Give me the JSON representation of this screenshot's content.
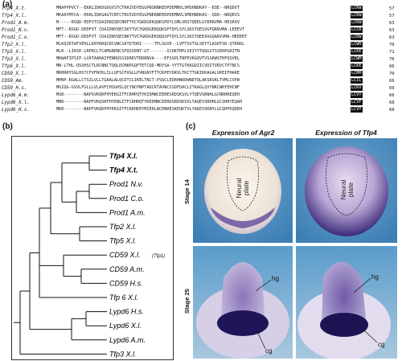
{
  "panels": {
    "a": "(a)",
    "b": "(b)",
    "c": "(c)"
  },
  "alignment": {
    "rows": [
      {
        "name": "Tfp4_X.t.",
        "seq": "MNAPPPVCY--EKKLIDKDGDGVSTCTRAIVDYEGGPNSRNKEDPDEMNVLVMSHNDKAY--EQE--NRQDVT",
        "end": "LCKW",
        "num": "57"
      },
      {
        "name": "Tfp4_X.l.",
        "seq": "MKAAYMYCA--EKKLIDKGAGTCNTCTRVIVDYEGGPNERNEEDPDEMNVLVMEHNDKAS--QDD--NRQEVS",
        "end": "LCKW",
        "num": "57"
      },
      {
        "name": "Prod1_A.m.",
        "seq": "M-----RSQD-EDFVTCDAIDNIQECNKFTVCYGKDGEKQQKSPDYLSMLVRSTQEELGYERRVMA-HESRVV",
        "end": "LCKW",
        "num": "63"
      },
      {
        "name": "Prod1_N.v.",
        "seq": "MFT--RSGD-DEDFVT CDAIDNYQECSKYTVCYGKDGERQQKSPTQYLSYLSKSTQESVGFQRRVMA-LEEEVT",
        "end": "LCCR",
        "num": "63"
      },
      {
        "name": "Prod1_C.o.",
        "seq": "MFT--RSGD-DEDFVT CDAIDNYQECNKYTVCYGKDGEKQQQSPTQYLSYLSKSTQEEAVGQARVVMA-HEEERT",
        "end": "LCKW",
        "num": "63"
      },
      {
        "name": "Tfp2_X.l.",
        "seq": "MLKQIKTAFVEHLLERYKRQCKCVNCSATDTDRI-----TFLSGVE--LVFTSVTSLSEYTLASHTSD-QTKRDL",
        "end": "LCWH",
        "num": "70"
      },
      {
        "name": "Tfp5_X.l.",
        "seq": "MLR--LIRSE-LRPRCLTCAMGRENCSFQSSENT-GT-------ICDKTHPLSEIYYTQQGSTSSEHPGRITN",
        "end": "LCKE",
        "num": "71"
      },
      {
        "name": "Tfp3_X.l.",
        "seq": "MKWAFIPSIP-LVATAAHAIFENRQSSSDREVTRDRNVA----EFSSPLTNPEVKGQVTVSSRWSTHFQSVEL",
        "end": "LCWM",
        "num": "76"
      },
      {
        "name": "Tfp6_X.l.",
        "seq": "MN-LTHL-QSSHSCTLRCNNCTQQLDCMAPGQFTETCQD-MDYSA-YYTTGTKKGDIICVDITVRVCTPTNCS",
        "end": "LCKE",
        "num": "66"
      },
      {
        "name": "CD59_X.l.",
        "seq": "MRHRRYSGLHSTCFVFNYKLILLQFSCFVGLLPVNGNYFTTCKPEYDKVLTKCTTGKIKKAGALVKEIFHAKE",
        "end": "LCMH",
        "num": "70"
      },
      {
        "name": "CD59_Am.",
        "seq": "MHNP-RGALLCTSILVLLTGAALALQCDTCLIKELTNCT-PSQCLEDRHWDDWNDTQLAKSRSKLTVMLCVPW",
        "end": "LCIL",
        "num": "66"
      },
      {
        "name": "CD59_H.s.",
        "seq": "MGIQG-GSVLFGLLLVLAVFCHSGHSLQCYNCPNPTADCKTAVNCSSDFDACLITKAGLQVYNKCWKFEHCNF",
        "end": "LCKV",
        "num": "69"
      },
      {
        "name": "Lypd6_A.m.",
        "seq": "MSR--------NAPSVKQRFHYEKGITFCRHPQTYKIDMWCEERESRDSKSVLYTQEVSRNHLGCNRHREQEH",
        "end": "LCVY",
        "num": "66"
      },
      {
        "name": "Lypd6_X.l.",
        "seq": "MNR--------NAPFVKQSRFHYENGITFCRHHQTYKEDMWCEERDSRDSKSVLYAQEVSRHHLGCSHRYEQAH",
        "end": "LCVF",
        "num": "68"
      },
      {
        "name": "Lypd6_H.s.",
        "seq": "MKR--------NAPFVKQRFHYEKGITFCKKHEEYMIEKLWCENRESKEQKTVLYAKEVSKNYLGCQHFKQDEH",
        "end": "LCVY",
        "num": "68"
      }
    ]
  },
  "tree": {
    "taxa": [
      {
        "label": "Tfp4 X.l.",
        "bold": true
      },
      {
        "label": "Tfp4 X.t.",
        "bold": true
      },
      {
        "label": "Prod1 N.v.",
        "bold": false
      },
      {
        "label": "Prod1 C.o.",
        "bold": false
      },
      {
        "label": "Prod1 A.m.",
        "bold": false
      },
      {
        "label": "Tfp2 X.l.",
        "bold": false
      },
      {
        "label": "Tfp5 X.l.",
        "bold": false
      },
      {
        "label": "CD59 X.l.",
        "bold": false,
        "suffix": "(Tfp1)"
      },
      {
        "label": "CD59 A.m.",
        "bold": false
      },
      {
        "label": "CD59 H.s.",
        "bold": false
      },
      {
        "label": "Tfp 6 X.l.",
        "bold": false
      },
      {
        "label": "Lypd6 H.s.",
        "bold": false
      },
      {
        "label": "Lypd6 X.l.",
        "bold": false
      },
      {
        "label": "Lypd6 A.m.",
        "bold": false
      },
      {
        "label": "Tfp3 X.l.",
        "bold": false
      }
    ]
  },
  "images": {
    "col1_title": "Expression of Agr2",
    "col2_title": "Expression of Tfp4",
    "stage1": "Stage 14",
    "stage2": "Stage 25",
    "np1_line1": "Neural",
    "np1_line2": "plate",
    "np2_line1": "Neural",
    "np2_line2": "plate",
    "hg1": "hg",
    "cg1": "cg",
    "hg2": "hg",
    "cg2": "cg",
    "colors": {
      "background_blue": "#4f8fbf",
      "stain": "#3b2d7a",
      "embryo_light": "#efe6dc"
    }
  }
}
